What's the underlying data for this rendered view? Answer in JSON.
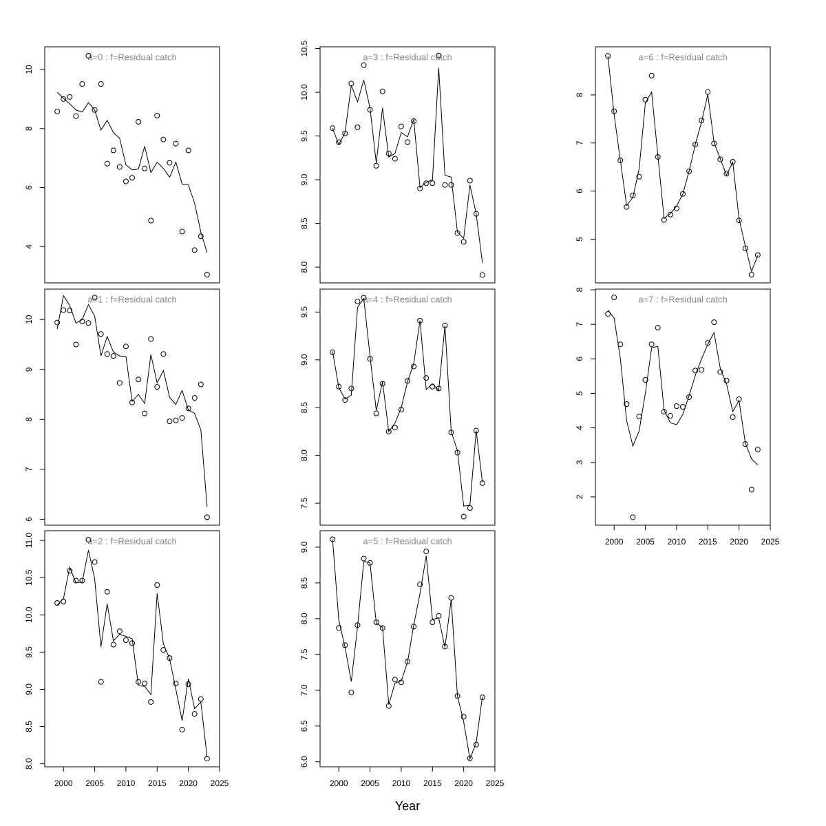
{
  "chart_data": [
    {
      "type": "line",
      "title": "a=0 : f=Residual catch",
      "x": [
        1999,
        2000,
        2001,
        2002,
        2003,
        2004,
        2005,
        2006,
        2007,
        2008,
        2009,
        2010,
        2011,
        2012,
        2013,
        2014,
        2015,
        2016,
        2017,
        2018,
        2019,
        2020,
        2021,
        2022,
        2023
      ],
      "xlim": [
        1997,
        2025
      ],
      "ylim": [
        2.77,
        10.77
      ],
      "yticks": [
        4,
        6,
        8,
        10
      ],
      "series": [
        {
          "style": "points",
          "color": "#000000",
          "values": [
            8.58,
            9.0,
            9.07,
            8.42,
            9.51,
            10.47,
            8.63,
            9.51,
            6.81,
            7.26,
            6.7,
            6.21,
            6.33,
            8.23,
            6.65,
            4.88,
            8.44,
            7.63,
            6.84,
            7.49,
            4.51,
            7.26,
            3.88,
            4.35,
            3.05
          ]
        },
        {
          "style": "line",
          "color": "#000000",
          "values": [
            9.23,
            9.02,
            8.84,
            8.63,
            8.56,
            8.88,
            8.63,
            7.95,
            8.28,
            7.86,
            7.67,
            6.77,
            6.6,
            6.63,
            7.4,
            6.51,
            6.86,
            6.65,
            6.35,
            6.86,
            6.12,
            6.09,
            5.47,
            4.49,
            3.79
          ]
        }
      ]
    },
    {
      "type": "line",
      "title": "a=1 : f=Residual catch",
      "x": [
        1999,
        2000,
        2001,
        2002,
        2003,
        2004,
        2005,
        2006,
        2007,
        2008,
        2009,
        2010,
        2011,
        2012,
        2013,
        2014,
        2015,
        2016,
        2017,
        2018,
        2019,
        2020,
        2021,
        2022,
        2023
      ],
      "xlim": [
        1997,
        2025
      ],
      "ylim": [
        5.88,
        10.61
      ],
      "yticks": [
        6,
        7,
        8,
        9,
        10
      ],
      "series": [
        {
          "style": "points",
          "color": "#000000",
          "values": [
            9.94,
            10.19,
            10.18,
            9.5,
            9.96,
            9.93,
            10.44,
            9.71,
            9.31,
            9.27,
            8.73,
            9.46,
            8.34,
            8.8,
            8.12,
            9.61,
            8.65,
            9.31,
            7.96,
            7.98,
            8.03,
            8.22,
            8.43,
            8.7,
            6.04
          ]
        },
        {
          "style": "line",
          "color": "#000000",
          "values": [
            9.81,
            10.48,
            10.28,
            9.93,
            10.0,
            10.3,
            10.07,
            9.27,
            9.66,
            9.35,
            9.27,
            9.26,
            8.36,
            8.5,
            8.32,
            9.3,
            8.73,
            8.98,
            8.44,
            8.3,
            8.58,
            8.19,
            8.12,
            7.79,
            6.25
          ]
        }
      ]
    },
    {
      "type": "line",
      "title": "a=2 : f=Residual catch",
      "x": [
        1999,
        2000,
        2001,
        2002,
        2003,
        2004,
        2005,
        2006,
        2007,
        2008,
        2009,
        2010,
        2011,
        2012,
        2013,
        2014,
        2015,
        2016,
        2017,
        2018,
        2019,
        2020,
        2021,
        2022,
        2023
      ],
      "xlim": [
        1997,
        2025
      ],
      "xticks": [
        2000,
        2005,
        2010,
        2015,
        2020,
        2025
      ],
      "ylim": [
        7.96,
        11.13
      ],
      "yticks": [
        {
          "value": 8,
          "label": "8.0"
        },
        8.5,
        {
          "value": 9,
          "label": "9.0"
        },
        9.5,
        {
          "value": 10,
          "label": "10.0"
        },
        10.5,
        {
          "value": 11,
          "label": "11.0"
        }
      ],
      "series": [
        {
          "style": "points",
          "color": "#000000",
          "values": [
            10.16,
            10.18,
            10.59,
            10.46,
            10.46,
            11.01,
            10.71,
            9.1,
            10.31,
            9.6,
            9.78,
            9.66,
            9.62,
            9.1,
            9.08,
            8.83,
            10.4,
            9.53,
            9.42,
            9.08,
            8.46,
            9.07,
            8.67,
            8.87,
            8.07
          ]
        },
        {
          "style": "line",
          "color": "#000000",
          "values": [
            10.13,
            10.22,
            10.64,
            10.43,
            10.44,
            10.87,
            10.48,
            9.57,
            10.15,
            9.65,
            9.74,
            9.71,
            9.68,
            9.05,
            9.04,
            8.93,
            10.29,
            9.61,
            9.41,
            9.0,
            8.58,
            9.14,
            8.74,
            8.83,
            8.09
          ]
        }
      ]
    },
    {
      "type": "line",
      "title": "a=3 : f=Residual catch",
      "x": [
        1999,
        2000,
        2001,
        2002,
        2003,
        2004,
        2005,
        2006,
        2007,
        2008,
        2009,
        2010,
        2011,
        2012,
        2013,
        2014,
        2015,
        2016,
        2017,
        2018,
        2019,
        2020,
        2021,
        2022,
        2023
      ],
      "xlim": [
        1997,
        2025
      ],
      "ylim": [
        7.82,
        10.52
      ],
      "yticks": [
        {
          "value": 8,
          "label": "8.0"
        },
        8.5,
        {
          "value": 9,
          "label": "9.0"
        },
        9.5,
        {
          "value": 10,
          "label": "10.0"
        },
        10.5
      ],
      "series": [
        {
          "style": "points",
          "color": "#000000",
          "values": [
            9.59,
            9.43,
            9.53,
            10.1,
            9.6,
            10.31,
            9.8,
            9.16,
            10.01,
            9.3,
            9.24,
            9.61,
            9.43,
            9.67,
            8.9,
            8.96,
            8.96,
            10.42,
            8.94,
            8.94,
            8.39,
            8.29,
            8.99,
            8.61,
            7.91
          ]
        },
        {
          "style": "line",
          "color": "#000000",
          "values": [
            9.59,
            9.4,
            9.54,
            10.08,
            9.89,
            10.14,
            9.82,
            9.19,
            9.82,
            9.26,
            9.3,
            9.54,
            9.49,
            9.69,
            8.91,
            8.97,
            9.0,
            10.28,
            9.05,
            9.03,
            8.4,
            8.33,
            8.94,
            8.61,
            8.05
          ]
        }
      ]
    },
    {
      "type": "line",
      "title": "a=4 : f=Residual catch",
      "x": [
        1999,
        2000,
        2001,
        2002,
        2003,
        2004,
        2005,
        2006,
        2007,
        2008,
        2009,
        2010,
        2011,
        2012,
        2013,
        2014,
        2015,
        2016,
        2017,
        2018,
        2019,
        2020,
        2021,
        2022,
        2023
      ],
      "xlim": [
        1997,
        2025
      ],
      "ylim": [
        7.27,
        9.74
      ],
      "yticks": [
        7.5,
        {
          "value": 8,
          "label": "8.0"
        },
        8.5,
        {
          "value": 9,
          "label": "9.0"
        },
        9.5
      ],
      "series": [
        {
          "style": "points",
          "color": "#000000",
          "values": [
            9.08,
            8.72,
            8.58,
            8.7,
            9.61,
            9.65,
            9.01,
            8.44,
            8.75,
            8.25,
            8.29,
            8.48,
            8.78,
            8.93,
            9.41,
            8.81,
            8.72,
            8.7,
            9.36,
            8.24,
            8.03,
            7.36,
            7.45,
            8.26,
            7.71
          ]
        },
        {
          "style": "line",
          "color": "#000000",
          "values": [
            9.09,
            8.71,
            8.59,
            8.63,
            9.55,
            9.64,
            9.04,
            8.47,
            8.77,
            8.25,
            8.34,
            8.5,
            8.77,
            8.96,
            9.41,
            8.69,
            8.75,
            8.68,
            9.36,
            8.25,
            8.05,
            7.47,
            7.48,
            8.26,
            7.72
          ]
        }
      ]
    },
    {
      "type": "line",
      "title": "a=5 : f=Residual catch",
      "xlabel": "Year",
      "x": [
        1999,
        2000,
        2001,
        2002,
        2003,
        2004,
        2005,
        2006,
        2007,
        2008,
        2009,
        2010,
        2011,
        2012,
        2013,
        2014,
        2015,
        2016,
        2017,
        2018,
        2019,
        2020,
        2021,
        2022,
        2023
      ],
      "xlim": [
        1997,
        2025
      ],
      "xticks": [
        2000,
        2005,
        2010,
        2015,
        2020,
        2025
      ],
      "ylim": [
        5.93,
        9.23
      ],
      "yticks": [
        {
          "value": 6,
          "label": "6.0"
        },
        6.5,
        {
          "value": 7,
          "label": "7.0"
        },
        7.5,
        {
          "value": 8,
          "label": "8.0"
        },
        8.5,
        {
          "value": 9,
          "label": "9.0"
        }
      ],
      "series": [
        {
          "style": "points",
          "color": "#000000",
          "values": [
            9.11,
            7.87,
            7.63,
            6.97,
            7.91,
            8.84,
            8.78,
            7.95,
            7.87,
            6.78,
            7.15,
            7.11,
            7.4,
            7.89,
            8.48,
            8.94,
            7.95,
            8.04,
            7.61,
            8.29,
            6.92,
            6.63,
            6.05,
            6.24,
            6.9
          ]
        },
        {
          "style": "line",
          "color": "#000000",
          "values": [
            9.11,
            7.98,
            7.6,
            7.12,
            7.89,
            8.8,
            8.78,
            7.94,
            7.88,
            6.8,
            7.1,
            7.13,
            7.39,
            7.91,
            8.35,
            8.88,
            7.99,
            8.01,
            7.6,
            8.27,
            6.92,
            6.56,
            6.04,
            6.27,
            6.91
          ]
        }
      ]
    },
    {
      "type": "line",
      "title": "a=6 : f=Residual catch",
      "x": [
        1999,
        2000,
        2001,
        2002,
        2003,
        2004,
        2005,
        2006,
        2007,
        2008,
        2009,
        2010,
        2011,
        2012,
        2013,
        2014,
        2015,
        2016,
        2017,
        2018,
        2019,
        2020,
        2021,
        2022,
        2023
      ],
      "xlim": [
        1997,
        2025
      ],
      "ylim": [
        4.09,
        9.0
      ],
      "yticks": [
        5,
        6,
        7,
        8
      ],
      "series": [
        {
          "style": "points",
          "color": "#000000",
          "values": [
            8.81,
            7.66,
            6.64,
            5.67,
            5.91,
            6.3,
            7.9,
            8.4,
            6.71,
            5.4,
            5.51,
            5.64,
            5.94,
            6.41,
            6.97,
            7.47,
            8.06,
            6.99,
            6.66,
            6.36,
            6.61,
            5.39,
            4.81,
            4.26,
            4.67
          ]
        },
        {
          "style": "line",
          "color": "#000000",
          "values": [
            8.81,
            7.59,
            6.63,
            5.7,
            5.87,
            6.46,
            7.83,
            8.06,
            6.74,
            5.43,
            5.53,
            5.69,
            5.94,
            6.41,
            6.97,
            7.44,
            8.01,
            7.01,
            6.67,
            6.33,
            6.6,
            5.43,
            4.86,
            4.33,
            4.66
          ]
        }
      ]
    },
    {
      "type": "line",
      "title": "a=7 : f=Residual catch",
      "x": [
        1999,
        2000,
        2001,
        2002,
        2003,
        2004,
        2005,
        2006,
        2007,
        2008,
        2009,
        2010,
        2011,
        2012,
        2013,
        2014,
        2015,
        2016,
        2017,
        2018,
        2019,
        2020,
        2021,
        2022,
        2023
      ],
      "xlim": [
        1997,
        2025
      ],
      "xticks": [
        2000,
        2005,
        2010,
        2015,
        2020,
        2025
      ],
      "ylim": [
        1.18,
        8.02
      ],
      "yticks": [
        2,
        3,
        4,
        5,
        6,
        7,
        8
      ],
      "series": [
        {
          "style": "points",
          "color": "#000000",
          "values": [
            7.3,
            7.78,
            6.42,
            4.69,
            1.41,
            4.33,
            5.39,
            6.42,
            6.9,
            4.47,
            4.35,
            4.63,
            4.61,
            4.89,
            5.66,
            5.68,
            6.46,
            7.06,
            5.62,
            5.37,
            4.31,
            4.83,
            3.53,
            2.21,
            3.37
          ]
        },
        {
          "style": "line",
          "color": "#000000",
          "values": [
            7.42,
            7.18,
            6.0,
            4.21,
            3.47,
            3.91,
            5.0,
            6.32,
            6.36,
            4.51,
            4.15,
            4.09,
            4.39,
            4.93,
            5.52,
            6.0,
            6.42,
            6.76,
            5.72,
            5.27,
            4.47,
            4.79,
            3.57,
            3.1,
            2.93
          ]
        }
      ]
    }
  ]
}
